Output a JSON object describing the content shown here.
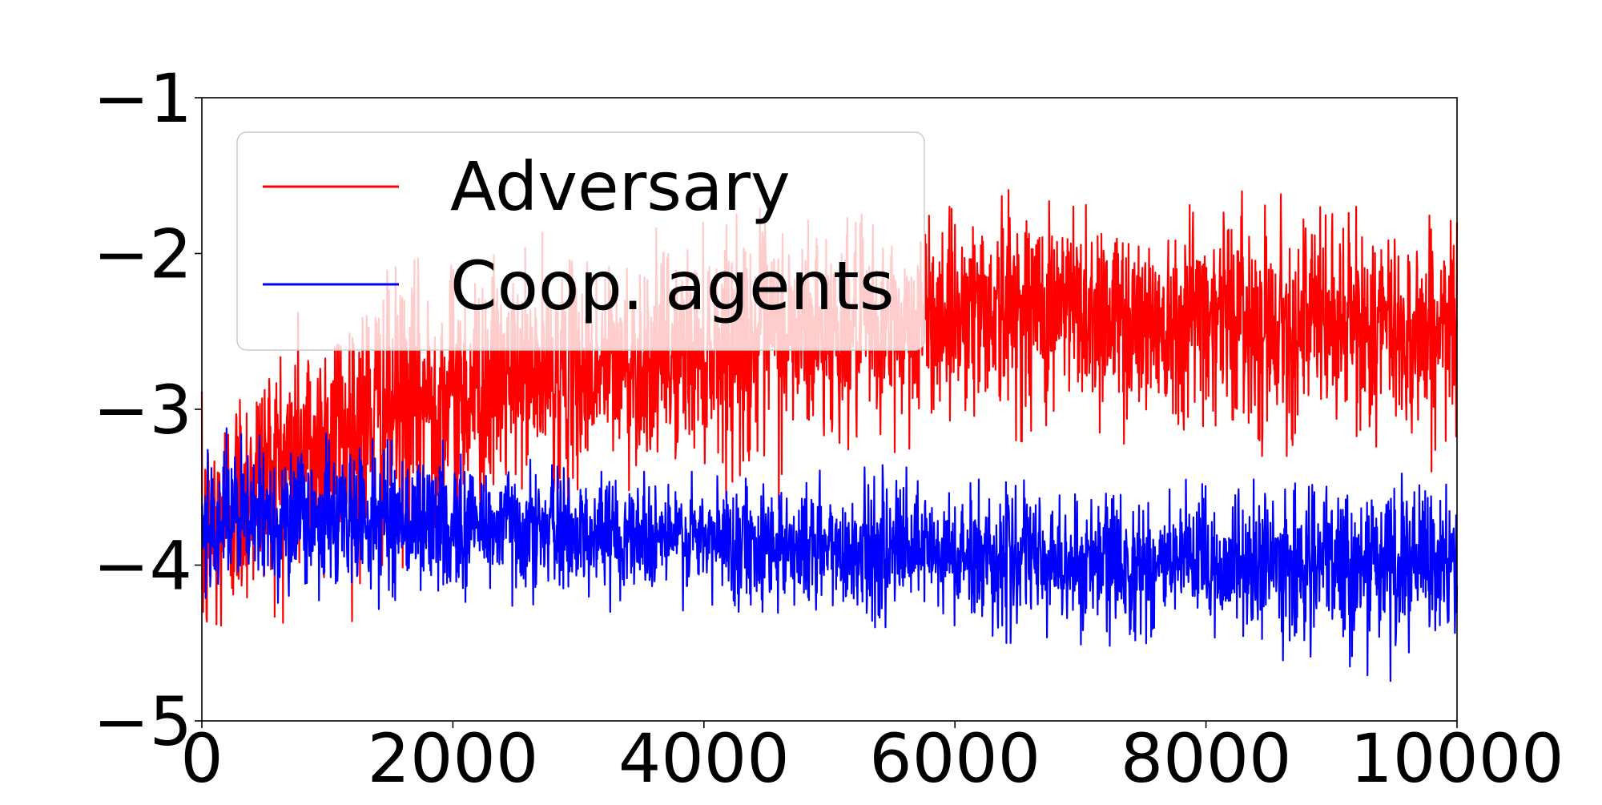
{
  "chart_data": {
    "type": "line",
    "title": "",
    "xlabel": "",
    "ylabel": "",
    "xlim": [
      0,
      10000
    ],
    "ylim": [
      -5,
      -1
    ],
    "x_ticks": [
      0,
      2000,
      4000,
      6000,
      8000,
      10000
    ],
    "x_tick_labels": [
      "0",
      "2000",
      "4000",
      "6000",
      "8000",
      "10000"
    ],
    "y_ticks": [
      -1,
      -2,
      -3,
      -4,
      -5
    ],
    "y_tick_labels": [
      "−1",
      "−2",
      "−3",
      "−4",
      "−5"
    ],
    "grid": false,
    "legend_placement": "upper-left",
    "series": [
      {
        "name": "Adversary",
        "color": "#ff0000",
        "x": [
          0,
          250,
          500,
          750,
          1000,
          1500,
          2000,
          2500,
          3000,
          3500,
          4000,
          4500,
          5000,
          5500,
          6000,
          6500,
          7000,
          7500,
          8000,
          8500,
          9000,
          9500,
          10000
        ],
        "mean": [
          -3.9,
          -3.6,
          -3.4,
          -3.3,
          -3.2,
          -3.0,
          -2.9,
          -2.8,
          -2.75,
          -2.7,
          -2.6,
          -2.55,
          -2.5,
          -2.5,
          -2.35,
          -2.35,
          -2.35,
          -2.45,
          -2.35,
          -2.45,
          -2.45,
          -2.5,
          -2.5
        ],
        "min": [
          -4.6,
          -4.5,
          -4.4,
          -4.35,
          -4.4,
          -4.3,
          -4.0,
          -3.5,
          -3.6,
          -3.5,
          -3.5,
          -3.7,
          -3.4,
          -3.3,
          -3.2,
          -3.2,
          -3.3,
          -3.3,
          -3.3,
          -3.3,
          -3.3,
          -3.4,
          -3.4
        ],
        "max": [
          -2.7,
          -2.6,
          -2.5,
          -2.3,
          -2.3,
          -2.1,
          -1.95,
          -1.8,
          -1.9,
          -1.85,
          -1.8,
          -1.7,
          -1.8,
          -1.7,
          -1.7,
          -1.45,
          -1.6,
          -1.8,
          -1.6,
          -1.6,
          -1.7,
          -1.7,
          -1.8
        ]
      },
      {
        "name": "Coop. agents",
        "color": "#0000ff",
        "x": [
          0,
          250,
          500,
          750,
          1000,
          1500,
          2000,
          2500,
          3000,
          3500,
          4000,
          4500,
          5000,
          5500,
          6000,
          6500,
          7000,
          7500,
          8000,
          8500,
          9000,
          9500,
          10000
        ],
        "mean": [
          -3.7,
          -3.7,
          -3.7,
          -3.7,
          -3.7,
          -3.7,
          -3.75,
          -3.75,
          -3.8,
          -3.8,
          -3.85,
          -3.85,
          -3.9,
          -3.9,
          -3.95,
          -3.95,
          -4.0,
          -4.0,
          -4.0,
          -4.0,
          -4.0,
          -4.0,
          -4.0
        ],
        "min": [
          -4.2,
          -4.3,
          -4.2,
          -4.3,
          -4.2,
          -4.3,
          -4.3,
          -4.3,
          -4.3,
          -4.3,
          -4.3,
          -4.3,
          -4.4,
          -4.4,
          -4.5,
          -4.5,
          -4.55,
          -4.5,
          -4.55,
          -4.6,
          -4.65,
          -4.75,
          -4.6
        ],
        "max": [
          -3.2,
          -3.1,
          -3.1,
          -3.1,
          -3.1,
          -3.2,
          -3.2,
          -3.3,
          -3.4,
          -3.4,
          -3.4,
          -3.3,
          -3.4,
          -3.35,
          -3.45,
          -3.45,
          -3.5,
          -3.35,
          -3.45,
          -3.45,
          -3.5,
          -3.4,
          -3.5
        ]
      }
    ]
  }
}
